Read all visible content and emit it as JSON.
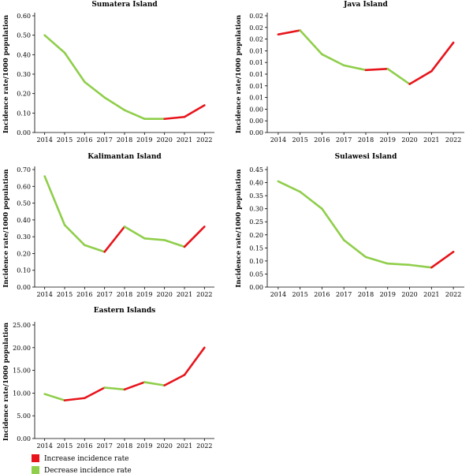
{
  "colors": {
    "increase": "#e8141b",
    "decrease": "#8fce4a",
    "axis": "#000000"
  },
  "legend": [
    {
      "key": "increase",
      "label": "Increase incidence rate"
    },
    {
      "key": "decrease",
      "label": "Decrease incidence rate"
    }
  ],
  "chart_data": [
    {
      "type": "line",
      "title": "Sumatera Island",
      "ylabel": "Incidence rate/1000 population",
      "xlabel": "",
      "x": [
        "2014",
        "2015",
        "2016",
        "2017",
        "2018",
        "2019",
        "2020",
        "2021",
        "2022"
      ],
      "values": [
        0.5,
        0.41,
        0.26,
        0.18,
        0.115,
        0.07,
        0.07,
        0.08,
        0.14
      ],
      "ylim": [
        0,
        0.6
      ],
      "yticks": [
        "0.00",
        "0.10",
        "0.20",
        "0.30",
        "0.40",
        "0.50",
        "0.60"
      ],
      "segment_trend": [
        "decrease",
        "decrease",
        "decrease",
        "decrease",
        "decrease",
        "decrease",
        "increase",
        "increase"
      ]
    },
    {
      "type": "line",
      "title": "Java Island",
      "ylabel": "Incidence rate/1000 population",
      "xlabel": "",
      "x": [
        "2014",
        "2015",
        "2016",
        "2017",
        "2018",
        "2019",
        "2020",
        "2021",
        "2022"
      ],
      "values": [
        0.0168,
        0.0175,
        0.0134,
        0.0115,
        0.0107,
        0.0109,
        0.0083,
        0.0105,
        0.0154
      ],
      "ylim": [
        0,
        0.02
      ],
      "yticks": [
        "0.00",
        "0.00",
        "0.00",
        "0.01",
        "0.01",
        "0.01",
        "0.01",
        "0.01",
        "0.02",
        "0.02",
        "0.02"
      ],
      "segment_trend": [
        "increase",
        "decrease",
        "decrease",
        "decrease",
        "increase",
        "decrease",
        "increase",
        "increase"
      ]
    },
    {
      "type": "line",
      "title": "Kalimantan Island",
      "ylabel": "Incidence rate/1000 population",
      "xlabel": "",
      "x": [
        "2014",
        "2015",
        "2016",
        "2017",
        "2018",
        "2019",
        "2020",
        "2021",
        "2022"
      ],
      "values": [
        0.66,
        0.37,
        0.25,
        0.21,
        0.36,
        0.29,
        0.28,
        0.24,
        0.36
      ],
      "ylim": [
        0,
        0.7
      ],
      "yticks": [
        "0.00",
        "0.10",
        "0.20",
        "0.30",
        "0.40",
        "0.50",
        "0.60",
        "0.70"
      ],
      "segment_trend": [
        "decrease",
        "decrease",
        "decrease",
        "increase",
        "decrease",
        "decrease",
        "decrease",
        "increase"
      ]
    },
    {
      "type": "line",
      "title": "Sulawesi Island",
      "ylabel": "Incidence rate/1000 population",
      "xlabel": "",
      "x": [
        "2014",
        "2015",
        "2016",
        "2017",
        "2018",
        "2019",
        "2020",
        "2021",
        "2022"
      ],
      "values": [
        0.405,
        0.365,
        0.3,
        0.18,
        0.115,
        0.09,
        0.085,
        0.075,
        0.135
      ],
      "ylim": [
        0,
        0.45
      ],
      "yticks": [
        "0.00",
        "0.05",
        "0.10",
        "0.15",
        "0.20",
        "0.25",
        "0.30",
        "0.35",
        "0.40",
        "0.45"
      ],
      "segment_trend": [
        "decrease",
        "decrease",
        "decrease",
        "decrease",
        "decrease",
        "decrease",
        "decrease",
        "increase"
      ]
    },
    {
      "type": "line",
      "title": "Eastern Islands",
      "ylabel": "Incidence rate/1000 population",
      "xlabel": "",
      "x": [
        "2014",
        "2015",
        "2016",
        "2017",
        "2018",
        "2019",
        "2020",
        "2021",
        "2022"
      ],
      "values": [
        9.8,
        8.4,
        8.9,
        11.2,
        10.8,
        12.4,
        11.7,
        14.0,
        20.0
      ],
      "ylim": [
        0,
        25
      ],
      "yticks": [
        "0.00",
        "5.00",
        "10.00",
        "15.00",
        "20.00",
        "25.00"
      ],
      "segment_trend": [
        "decrease",
        "increase",
        "increase",
        "decrease",
        "increase",
        "decrease",
        "increase",
        "increase"
      ]
    }
  ]
}
